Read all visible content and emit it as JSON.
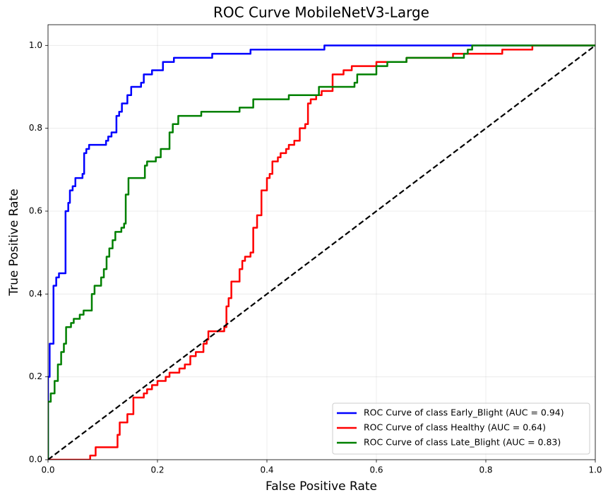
{
  "chart_data": {
    "type": "line",
    "title": "ROC Curve MobileNetV3-Large",
    "x_label": "False Positive Rate",
    "y_label": "True Positive Rate",
    "xlim": [
      0,
      1
    ],
    "ylim": [
      0,
      1.05
    ],
    "xticks": [
      {
        "value": 0,
        "label": "0.0"
      },
      {
        "value": 0.2,
        "label": "0.2"
      },
      {
        "value": 0.4,
        "label": "0.4"
      },
      {
        "value": 0.6,
        "label": "0.6"
      },
      {
        "value": 0.8,
        "label": "0.8"
      },
      {
        "value": 1,
        "label": "1.0"
      }
    ],
    "yticks": [
      {
        "value": 0,
        "label": "0.0"
      },
      {
        "value": 0.2,
        "label": "0.2"
      },
      {
        "value": 0.4,
        "label": "0.4"
      },
      {
        "value": 0.6,
        "label": "0.6"
      },
      {
        "value": 0.8,
        "label": "0.8"
      },
      {
        "value": 1,
        "label": "1.0"
      }
    ],
    "grid": true,
    "legend": "lower right",
    "reference_line": {
      "x": [
        0,
        1
      ],
      "values": [
        0,
        1
      ],
      "color": "#000000",
      "dashed": true
    },
    "series": [
      {
        "name": "ROC Curve of class Early_Blight (AUC = 0.94)",
        "color": "#0000ff",
        "x": [
          0,
          0,
          0.003,
          0.003,
          0.01,
          0.01,
          0.015,
          0.015,
          0.02,
          0.02,
          0.032,
          0.032,
          0.037,
          0.037,
          0.04,
          0.04,
          0.045,
          0.045,
          0.05,
          0.05,
          0.063,
          0.063,
          0.066,
          0.066,
          0.07,
          0.07,
          0.075,
          0.075,
          0.106,
          0.106,
          0.11,
          0.11,
          0.116,
          0.116,
          0.125,
          0.125,
          0.13,
          0.13,
          0.135,
          0.135,
          0.145,
          0.145,
          0.152,
          0.152,
          0.17,
          0.17,
          0.175,
          0.175,
          0.19,
          0.19,
          0.21,
          0.21,
          0.23,
          0.23,
          0.3,
          0.3,
          0.37,
          0.37,
          0.505,
          0.505,
          1
        ],
        "values": [
          0,
          0.2,
          0.2,
          0.28,
          0.28,
          0.42,
          0.42,
          0.44,
          0.44,
          0.45,
          0.45,
          0.6,
          0.6,
          0.62,
          0.62,
          0.65,
          0.65,
          0.66,
          0.66,
          0.68,
          0.68,
          0.69,
          0.69,
          0.74,
          0.74,
          0.75,
          0.75,
          0.76,
          0.76,
          0.77,
          0.77,
          0.78,
          0.78,
          0.79,
          0.79,
          0.83,
          0.83,
          0.84,
          0.84,
          0.86,
          0.86,
          0.88,
          0.88,
          0.9,
          0.9,
          0.91,
          0.91,
          0.93,
          0.93,
          0.94,
          0.94,
          0.96,
          0.96,
          0.97,
          0.97,
          0.98,
          0.98,
          0.99,
          0.99,
          1,
          1
        ]
      },
      {
        "name": "ROC Curve of class Healthy (AUC = 0.64)",
        "color": "#ff0000",
        "x": [
          0,
          0.077,
          0.077,
          0.087,
          0.087,
          0.127,
          0.127,
          0.131,
          0.131,
          0.145,
          0.145,
          0.156,
          0.156,
          0.175,
          0.175,
          0.181,
          0.181,
          0.19,
          0.19,
          0.2,
          0.2,
          0.215,
          0.215,
          0.222,
          0.222,
          0.24,
          0.24,
          0.25,
          0.25,
          0.26,
          0.26,
          0.27,
          0.27,
          0.284,
          0.284,
          0.29,
          0.29,
          0.293,
          0.293,
          0.322,
          0.322,
          0.326,
          0.326,
          0.33,
          0.33,
          0.335,
          0.335,
          0.35,
          0.35,
          0.355,
          0.355,
          0.36,
          0.36,
          0.37,
          0.37,
          0.375,
          0.375,
          0.382,
          0.382,
          0.39,
          0.39,
          0.4,
          0.4,
          0.405,
          0.405,
          0.41,
          0.41,
          0.42,
          0.42,
          0.425,
          0.425,
          0.435,
          0.435,
          0.44,
          0.44,
          0.45,
          0.45,
          0.46,
          0.46,
          0.47,
          0.47,
          0.475,
          0.475,
          0.48,
          0.48,
          0.49,
          0.49,
          0.5,
          0.5,
          0.52,
          0.52,
          0.54,
          0.54,
          0.555,
          0.555,
          0.6,
          0.6,
          0.655,
          0.655,
          0.74,
          0.74,
          0.83,
          0.83,
          0.885,
          0.885,
          1
        ],
        "values": [
          0,
          0,
          0.01,
          0.01,
          0.03,
          0.03,
          0.06,
          0.06,
          0.09,
          0.09,
          0.11,
          0.11,
          0.15,
          0.15,
          0.16,
          0.16,
          0.17,
          0.17,
          0.18,
          0.18,
          0.19,
          0.19,
          0.2,
          0.2,
          0.21,
          0.21,
          0.22,
          0.22,
          0.23,
          0.23,
          0.25,
          0.25,
          0.26,
          0.26,
          0.28,
          0.28,
          0.29,
          0.29,
          0.31,
          0.31,
          0.32,
          0.32,
          0.37,
          0.37,
          0.39,
          0.39,
          0.43,
          0.43,
          0.46,
          0.46,
          0.48,
          0.48,
          0.49,
          0.49,
          0.5,
          0.5,
          0.56,
          0.56,
          0.59,
          0.59,
          0.65,
          0.65,
          0.68,
          0.68,
          0.69,
          0.69,
          0.72,
          0.72,
          0.73,
          0.73,
          0.74,
          0.74,
          0.75,
          0.75,
          0.76,
          0.76,
          0.77,
          0.77,
          0.8,
          0.8,
          0.81,
          0.81,
          0.86,
          0.86,
          0.87,
          0.87,
          0.88,
          0.88,
          0.89,
          0.89,
          0.93,
          0.93,
          0.94,
          0.94,
          0.95,
          0.95,
          0.96,
          0.96,
          0.97,
          0.97,
          0.98,
          0.98,
          0.99,
          0.99,
          1,
          1
        ]
      },
      {
        "name": "ROC Curve of class Late_Blight (AUC = 0.83)",
        "color": "#008000",
        "x": [
          0,
          0,
          0,
          0.005,
          0.005,
          0.012,
          0.012,
          0.018,
          0.018,
          0.024,
          0.024,
          0.029,
          0.029,
          0.033,
          0.033,
          0.042,
          0.042,
          0.047,
          0.047,
          0.058,
          0.058,
          0.065,
          0.065,
          0.08,
          0.08,
          0.085,
          0.085,
          0.097,
          0.097,
          0.102,
          0.102,
          0.107,
          0.107,
          0.112,
          0.112,
          0.118,
          0.118,
          0.123,
          0.123,
          0.134,
          0.134,
          0.139,
          0.139,
          0.142,
          0.142,
          0.147,
          0.147,
          0.177,
          0.177,
          0.181,
          0.181,
          0.197,
          0.197,
          0.206,
          0.206,
          0.222,
          0.222,
          0.228,
          0.228,
          0.238,
          0.238,
          0.28,
          0.28,
          0.35,
          0.35,
          0.375,
          0.375,
          0.44,
          0.44,
          0.495,
          0.495,
          0.56,
          0.56,
          0.565,
          0.565,
          0.6,
          0.6,
          0.62,
          0.62,
          0.655,
          0.655,
          0.76,
          0.76,
          0.767,
          0.767,
          0.775,
          0.775,
          1
        ],
        "values": [
          0,
          0,
          0.14,
          0.14,
          0.16,
          0.16,
          0.19,
          0.19,
          0.23,
          0.23,
          0.26,
          0.26,
          0.28,
          0.28,
          0.32,
          0.32,
          0.33,
          0.33,
          0.34,
          0.34,
          0.35,
          0.35,
          0.36,
          0.36,
          0.4,
          0.4,
          0.42,
          0.42,
          0.44,
          0.44,
          0.46,
          0.46,
          0.49,
          0.49,
          0.51,
          0.51,
          0.53,
          0.53,
          0.55,
          0.55,
          0.56,
          0.56,
          0.57,
          0.57,
          0.64,
          0.64,
          0.68,
          0.68,
          0.71,
          0.71,
          0.72,
          0.72,
          0.73,
          0.73,
          0.75,
          0.75,
          0.79,
          0.79,
          0.81,
          0.81,
          0.83,
          0.83,
          0.84,
          0.84,
          0.85,
          0.85,
          0.87,
          0.87,
          0.88,
          0.88,
          0.9,
          0.9,
          0.91,
          0.91,
          0.93,
          0.93,
          0.95,
          0.95,
          0.96,
          0.96,
          0.97,
          0.97,
          0.98,
          0.98,
          0.99,
          0.99,
          1,
          1
        ]
      }
    ]
  }
}
